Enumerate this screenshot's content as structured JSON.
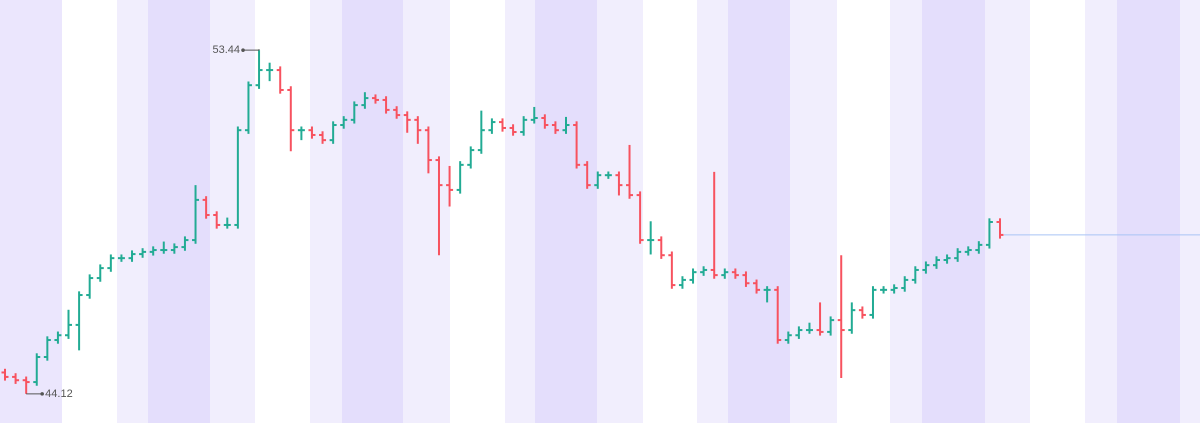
{
  "chart_data": {
    "type": "ohlc",
    "up_color": "#22ab94",
    "down_color": "#f7525f",
    "ylim": [
      43.33,
      54.8
    ],
    "max_label": 53.44,
    "min_label": 44.12,
    "open": [
      44.7,
      44.58,
      44.49,
      44.44,
      45.12,
      45.58,
      45.71,
      45.99,
      46.8,
      47.26,
      47.53,
      47.8,
      47.8,
      47.91,
      47.97,
      48.02,
      48.02,
      48.1,
      48.29,
      49.38,
      48.97,
      48.7,
      48.7,
      51.27,
      52.49,
      52.9,
      52.9,
      52.36,
      51.27,
      51.27,
      51.14,
      51.0,
      51.41,
      51.55,
      51.95,
      52.14,
      52.09,
      51.82,
      51.68,
      51.55,
      51.27,
      50.46,
      49.78,
      49.65,
      50.33,
      50.73,
      51.27,
      51.49,
      51.33,
      51.22,
      51.55,
      51.6,
      51.41,
      51.27,
      51.41,
      50.33,
      49.78,
      50.05,
      50.05,
      49.78,
      49.51,
      48.29,
      48.29,
      47.88,
      47.07,
      47.21,
      47.42,
      47.48,
      47.34,
      47.42,
      47.34,
      47.12,
      46.94,
      46.94,
      45.58,
      45.71,
      45.85,
      45.85,
      45.8,
      46.12,
      45.85,
      46.39,
      46.26,
      46.94,
      46.94,
      46.99,
      47.21,
      47.48,
      47.61,
      47.75,
      47.8,
      47.97,
      48.02,
      48.16,
      48.78
    ],
    "high": [
      44.8,
      44.68,
      44.59,
      45.22,
      45.68,
      45.81,
      46.4,
      46.9,
      47.36,
      47.63,
      47.9,
      47.9,
      48.01,
      48.07,
      48.12,
      48.25,
      48.2,
      48.39,
      49.78,
      49.48,
      49.07,
      48.9,
      51.37,
      52.59,
      53.44,
      53.1,
      53.0,
      52.46,
      51.37,
      51.37,
      51.24,
      51.51,
      51.65,
      52.05,
      52.3,
      52.24,
      52.19,
      51.92,
      51.78,
      51.65,
      51.37,
      50.56,
      50.3,
      50.43,
      50.83,
      51.8,
      51.59,
      51.59,
      51.43,
      51.65,
      51.9,
      51.7,
      51.51,
      51.63,
      51.51,
      50.43,
      50.15,
      50.15,
      50.15,
      50.87,
      49.61,
      48.8,
      48.39,
      47.98,
      47.31,
      47.52,
      47.58,
      50.14,
      47.52,
      47.52,
      47.44,
      47.22,
      47.04,
      47.04,
      45.81,
      45.95,
      46.05,
      46.6,
      46.22,
      47.88,
      46.6,
      46.49,
      47.04,
      47.04,
      47.09,
      47.31,
      47.58,
      47.71,
      47.85,
      47.9,
      48.07,
      48.12,
      48.26,
      48.88,
      48.88
    ],
    "low": [
      44.48,
      44.39,
      44.12,
      44.34,
      45.02,
      45.48,
      45.61,
      45.3,
      46.7,
      47.16,
      47.43,
      47.7,
      47.7,
      47.81,
      47.87,
      47.92,
      47.92,
      48.0,
      48.19,
      48.87,
      48.6,
      48.6,
      48.6,
      51.17,
      52.39,
      52.6,
      52.26,
      50.7,
      51.0,
      51.04,
      50.9,
      50.9,
      51.31,
      51.45,
      51.85,
      51.99,
      51.72,
      51.58,
      51.2,
      50.9,
      50.1,
      47.88,
      49.2,
      49.55,
      50.23,
      50.63,
      51.17,
      51.23,
      51.12,
      51.12,
      51.45,
      51.31,
      51.17,
      51.17,
      50.23,
      49.68,
      49.68,
      49.95,
      49.5,
      49.41,
      48.19,
      47.9,
      47.78,
      46.97,
      46.97,
      47.11,
      47.32,
      47.24,
      47.24,
      47.24,
      47.02,
      46.84,
      46.6,
      45.48,
      45.48,
      45.61,
      45.75,
      45.7,
      45.7,
      44.55,
      45.75,
      46.16,
      46.16,
      46.84,
      46.84,
      46.89,
      47.11,
      47.38,
      47.51,
      47.65,
      47.7,
      47.87,
      47.92,
      48.06,
      48.33
    ],
    "close": [
      44.58,
      44.49,
      44.44,
      45.12,
      45.58,
      45.71,
      45.99,
      46.8,
      47.26,
      47.53,
      47.8,
      47.8,
      47.91,
      47.97,
      48.02,
      48.02,
      48.1,
      48.29,
      49.38,
      48.97,
      48.7,
      48.7,
      51.27,
      52.49,
      52.9,
      52.9,
      52.36,
      51.27,
      51.27,
      51.14,
      51.0,
      51.41,
      51.55,
      51.95,
      52.14,
      52.09,
      51.82,
      51.68,
      51.55,
      51.27,
      50.46,
      49.78,
      49.65,
      50.33,
      50.73,
      51.27,
      51.49,
      51.33,
      51.22,
      51.55,
      51.6,
      51.41,
      51.27,
      51.41,
      50.33,
      49.78,
      50.05,
      50.05,
      49.78,
      49.51,
      48.29,
      48.29,
      47.88,
      47.07,
      47.21,
      47.42,
      47.48,
      47.34,
      47.42,
      47.34,
      47.12,
      46.94,
      46.94,
      45.58,
      45.71,
      45.85,
      45.85,
      45.8,
      46.12,
      45.85,
      46.39,
      46.26,
      46.94,
      46.94,
      46.99,
      47.21,
      47.48,
      47.61,
      47.75,
      47.8,
      47.97,
      48.02,
      48.16,
      48.78,
      48.43
    ]
  }
}
